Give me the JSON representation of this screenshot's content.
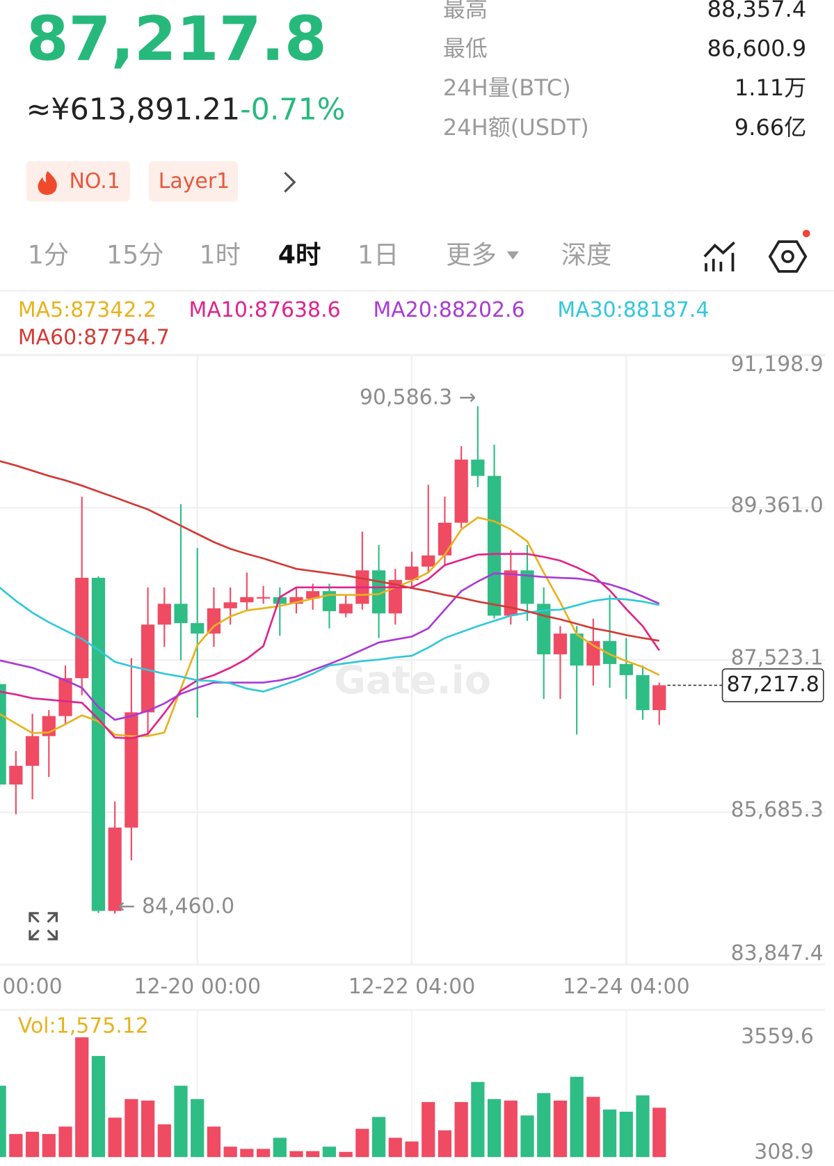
{
  "header": {
    "price": "87,217.8",
    "fiat": "≈¥613,891.21",
    "change": "-0.71%",
    "tags": [
      "NO.1",
      "Layer1"
    ]
  },
  "stats": [
    {
      "label": "最高",
      "value": "88,357.4"
    },
    {
      "label": "最低",
      "value": "86,600.9"
    },
    {
      "label": "24H量(BTC)",
      "value": "1.11万"
    },
    {
      "label": "24H额(USDT)",
      "value": "9.66亿"
    }
  ],
  "tabs": [
    "1分",
    "15分",
    "1时",
    "4时",
    "1日",
    "更多",
    "深度"
  ],
  "chart_data": {
    "type": "candlestick",
    "watermark": "Gate.io",
    "up_color": "#ef4b63",
    "down_color": "#2ebd85",
    "grid": true,
    "categories": [
      null,
      null,
      "00:00",
      null,
      null,
      null,
      null,
      null,
      null,
      null,
      null,
      null,
      "12-20 00:00",
      null,
      null,
      null,
      null,
      null,
      null,
      null,
      null,
      null,
      null,
      null,
      null,
      "12-22 04:00",
      null,
      null,
      null,
      null,
      null,
      null,
      null,
      null,
      null,
      null,
      null,
      null,
      "12-24 04:00",
      null,
      null
    ],
    "open": [
      87232,
      86020,
      86245,
      86604,
      86846,
      87304,
      88515,
      84494,
      85500,
      86891,
      87950,
      88201,
      87968,
      87842,
      88147,
      88219,
      88264,
      88282,
      88201,
      88264,
      88354,
      88085,
      88201,
      88605,
      88085,
      88489,
      88650,
      88785,
      89180,
      89942,
      89745,
      88058,
      88605,
      88201,
      87591,
      87842,
      87456,
      87752,
      87474,
      87340,
      86918
    ],
    "high": [
      87277,
      86424,
      86873,
      86918,
      87456,
      89494,
      88533,
      85814,
      87546,
      88399,
      88399,
      89404,
      88874,
      88399,
      88399,
      88578,
      88417,
      88399,
      88399,
      88444,
      88444,
      88309,
      89072,
      88910,
      88623,
      88829,
      89637,
      89494,
      90104,
      90586.3,
      90122,
      88847,
      88910,
      88399,
      87932,
      87932,
      88022,
      88309,
      87788,
      87456,
      87250
    ],
    "low": [
      85976,
      85661,
      85841,
      86110,
      86738,
      87097,
      84468,
      84460,
      85105,
      86604,
      87681,
      87519,
      86828,
      87681,
      87950,
      88130,
      88201,
      87815,
      88085,
      88130,
      87905,
      88040,
      88130,
      87788,
      87950,
      88399,
      88578,
      88668,
      89117,
      89610,
      88022,
      87950,
      87995,
      87052,
      87052,
      86622,
      87214,
      87187,
      87052,
      86801,
      86738
    ],
    "close": [
      86020,
      86245,
      86604,
      86846,
      87304,
      88515,
      84494,
      85500,
      86891,
      87950,
      88201,
      87968,
      87842,
      88147,
      88219,
      88282,
      88282,
      88201,
      88282,
      88354,
      88112,
      88201,
      88605,
      88085,
      88489,
      88650,
      88785,
      89180,
      89942,
      89745,
      88058,
      88605,
      88201,
      87591,
      87842,
      87456,
      87752,
      87474,
      87340,
      86918,
      87217.8
    ],
    "series": [
      {
        "name": "MA5:87342.2",
        "color": "#e8b21c",
        "values": [
          86873,
          86756,
          86640,
          86648,
          86747,
          86855,
          86783,
          86622,
          86604,
          86604,
          86648,
          87178,
          87699,
          87932,
          88049,
          88121,
          88147,
          88174,
          88219,
          88264,
          88309,
          88309,
          88309,
          88318,
          88399,
          88480,
          88578,
          88794,
          89099,
          89242,
          89197,
          89099,
          88955,
          88578,
          88219,
          87833,
          87699,
          87591,
          87510,
          87438,
          87342.2
        ]
      },
      {
        "name": "MA10:87638.6",
        "color": "#e0238a",
        "values": [
          87142,
          87106,
          87061,
          87043,
          87025,
          87007,
          86810,
          86586,
          86577,
          86631,
          86882,
          87151,
          87277,
          87340,
          87429,
          87537,
          87690,
          88282,
          88399,
          88399,
          88399,
          88399,
          88399,
          88399,
          88399,
          88399,
          88498,
          88668,
          88731,
          88794,
          88803,
          88803,
          88803,
          88767,
          88722,
          88641,
          88542,
          88363,
          88139,
          87932,
          87638.6
        ]
      },
      {
        "name": "MA20:88202.6",
        "color": "#a93ad6",
        "values": [
          87519,
          87474,
          87429,
          87357,
          87277,
          87187,
          86954,
          86801,
          86846,
          86909,
          86998,
          87115,
          87187,
          87250,
          87250,
          87250,
          87250,
          87277,
          87322,
          87402,
          87474,
          87555,
          87645,
          87734,
          87770,
          87806,
          87905,
          88130,
          88354,
          88471,
          88569,
          88560,
          88542,
          88524,
          88515,
          88507,
          88480,
          88435,
          88372,
          88291,
          88202.6
        ]
      },
      {
        "name": "MA30:88187.4",
        "color": "#31c8d8",
        "values": [
          88399,
          88237,
          88094,
          87977,
          87878,
          87779,
          87645,
          87501,
          87447,
          87402,
          87357,
          87322,
          87277,
          87268,
          87241,
          87178,
          87142,
          87205,
          87277,
          87357,
          87456,
          87483,
          87510,
          87528,
          87555,
          87573,
          87672,
          87788,
          87860,
          87932,
          87995,
          88058,
          88094,
          88121,
          88130,
          88183,
          88237,
          88264,
          88255,
          88228,
          88187.4
        ]
      },
      {
        "name": "MA60:87754.7",
        "color": "#d23a35",
        "values": [
          89924,
          89870,
          89808,
          89745,
          89691,
          89628,
          89556,
          89485,
          89413,
          89341,
          89242,
          89144,
          89045,
          88946,
          88865,
          88803,
          88749,
          88686,
          88623,
          88596,
          88569,
          88542,
          88507,
          88471,
          88435,
          88390,
          88354,
          88309,
          88273,
          88228,
          88192,
          88156,
          88112,
          88058,
          88013,
          87959,
          87905,
          87869,
          87824,
          87788,
          87754.7
        ]
      }
    ],
    "ylim": [
      83847.4,
      91198.9
    ],
    "yticks": [
      {
        "value": 91198.9,
        "label": "91,198.9"
      },
      {
        "value": 89361.0,
        "label": "89,361.0"
      },
      {
        "value": 87523.1,
        "label": "87,523.1"
      },
      {
        "value": 85685.3,
        "label": "85,685.3"
      },
      {
        "value": 83847.4,
        "label": "83,847.4"
      }
    ],
    "annotations": [
      {
        "value": 90586.3,
        "label": "90,586.3 →"
      },
      {
        "value": 84460.0,
        "label": "← 84,460.0"
      }
    ],
    "last_price": {
      "value": 87217.8,
      "label": "87,217.8"
    },
    "volume": {
      "title": "Vol:1,575.12",
      "values": [
        2196,
        833,
        896,
        833,
        1043,
        3559.6,
        3035,
        1295,
        1819,
        1777,
        1106,
        2196,
        1819,
        1043,
        477,
        414,
        414,
        728,
        351,
        351,
        477,
        330,
        980,
        1315,
        728,
        624,
        1735,
        938,
        1735,
        2301,
        1819,
        1777,
        1357,
        1987,
        1777,
        2448,
        1882,
        1525,
        1462,
        1924,
        1575.12
      ],
      "ylim": [
        308.9,
        3559.6
      ],
      "yticks": [
        3559.6,
        308.9
      ]
    }
  }
}
